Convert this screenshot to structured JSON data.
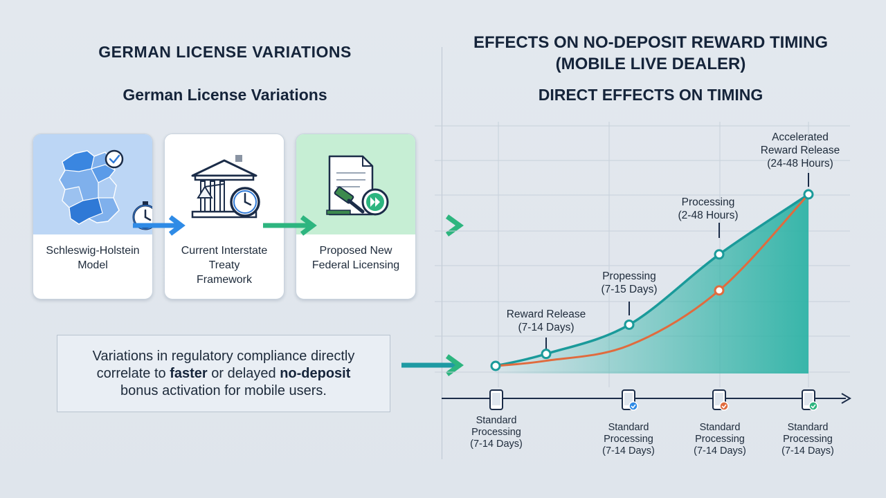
{
  "left_panel": {
    "title": "GERMAN LICENSE VARIATIONS",
    "subtitle": "German License Variations",
    "cards": [
      {
        "label_lines": [
          "Schleswig-Holstein",
          "Model"
        ],
        "icon": "germany-map-icon"
      },
      {
        "label_lines": [
          "Current Interstate",
          "Treaty",
          "Framework"
        ],
        "icon": "courthouse-clock-icon"
      },
      {
        "label_lines": [
          "Proposed New",
          "Federal Licensing"
        ],
        "icon": "document-gavel-icon"
      }
    ],
    "note": {
      "line1": "Variations in regulatory compliance directly",
      "line2_pre": "correlate to ",
      "line2_bold1": "faster",
      "line2_mid": " or delayed ",
      "line2_bold2": "no-deposit",
      "line3": "bonus activation for mobile users."
    }
  },
  "right_panel": {
    "title_line1": "EFFECTS ON NO-DEPOSIT REWARD TIMING",
    "title_line2": "(MOBILE LIVE DEALER)",
    "subtitle": "DIRECT EFFECTS ON TIMING"
  },
  "chart_data": {
    "type": "line",
    "title": "DIRECT EFFECTS ON TIMING",
    "series": [
      {
        "color": "#1a9a9a",
        "values": [
          0.0,
          0.07,
          0.24,
          0.65,
          1.0
        ]
      },
      {
        "color": "#e06b3e",
        "values": [
          0.0,
          0.03,
          0.12,
          0.44,
          1.0
        ]
      }
    ],
    "annotations": [
      {
        "lines": [
          "Reward Release",
          "(7-14 Days)"
        ]
      },
      {
        "lines": [
          "Propessing",
          "(7-15 Days)"
        ]
      },
      {
        "lines": [
          "Processing",
          "(2-48 Hours)"
        ]
      },
      {
        "lines": [
          "Accelerated",
          "Reward Release",
          "(24-48 Hours)"
        ]
      }
    ],
    "x_labels": [
      {
        "lines": [
          "Standard",
          "Processing",
          "(7-14 Days)"
        ]
      },
      {
        "lines": [
          "Standard",
          "Processing",
          "(7-14 Days)"
        ]
      },
      {
        "lines": [
          "Standard",
          "Processing",
          "(7-14 Days)"
        ]
      },
      {
        "lines": [
          "Standard",
          "Processing",
          "(7-14 Days)"
        ]
      }
    ],
    "grid": true,
    "fill_color": "#2fb3a6"
  },
  "colors": {
    "arrow_blue": "#2f8be6",
    "arrow_green": "#2db57f",
    "arrow_teal": "#1e9aa3",
    "card1_bg": "#bcd6f5",
    "card3_bg": "#c6eed4"
  }
}
